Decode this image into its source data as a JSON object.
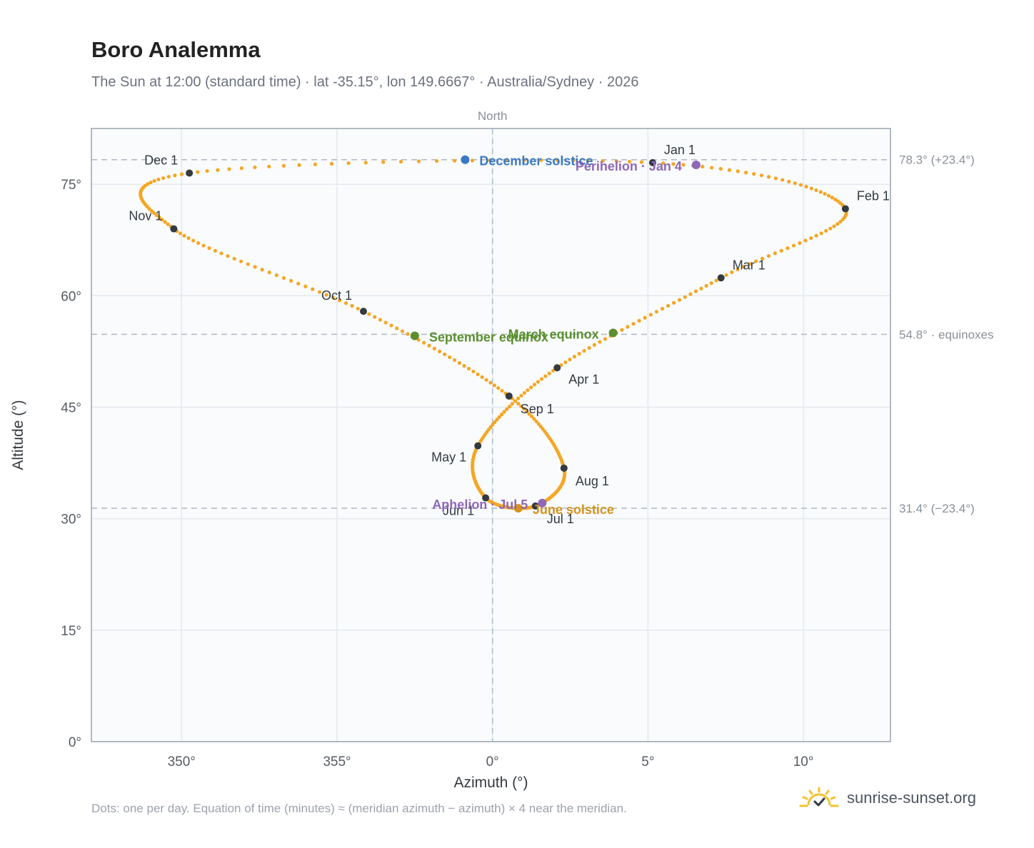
{
  "header": {
    "title": "Boro Analemma",
    "subtitle": "The Sun at 12:00 (standard time) · lat -35.15°, lon 149.6667° · Australia/Sydney · 2026"
  },
  "footer": {
    "note": "Dots: one per day. Equation of time (minutes) ≈ (meridian azimuth − azimuth) × 4 near the meridian.",
    "brand": "sunrise-sunset.org"
  },
  "colors": {
    "curve": "#f5a623",
    "month_marker": "#333a40",
    "equinox": "#5b8f2f",
    "december_solstice": "#3a78c2",
    "june_solstice": "#d4921e",
    "apsis": "#8e67b8",
    "plot_bg": "#f9fbfd",
    "grid": "#e3e9ef",
    "reference": "#b0b7c0"
  },
  "chart_data": {
    "type": "scatter",
    "xlabel": "Azimuth (°)",
    "ylabel": "Altitude (°)",
    "xlim": [
      347.1,
      372.8
    ],
    "ylim": [
      0,
      82.5
    ],
    "x_ticks": [
      {
        "value": 350,
        "label": "350°"
      },
      {
        "value": 355,
        "label": "355°"
      },
      {
        "value": 360,
        "label": "0°"
      },
      {
        "value": 365,
        "label": "5°"
      },
      {
        "value": 370,
        "label": "10°"
      }
    ],
    "y_ticks": [
      {
        "value": 0,
        "label": "0°"
      },
      {
        "value": 15,
        "label": "15°"
      },
      {
        "value": 30,
        "label": "30°"
      },
      {
        "value": 45,
        "label": "45°"
      },
      {
        "value": 60,
        "label": "60°"
      },
      {
        "value": 75,
        "label": "75°"
      }
    ],
    "meridian": {
      "x": 360,
      "label": "North"
    },
    "reference_lines": [
      {
        "y": 78.3,
        "label": "78.3° (+23.4°)"
      },
      {
        "y": 54.8,
        "label": "54.8° · equinoxes"
      },
      {
        "y": 31.4,
        "label": "31.4° (−23.4°)"
      }
    ],
    "grid": true,
    "month_markers": [
      {
        "label": "Jan 1",
        "x": 365.15,
        "y": 77.9
      },
      {
        "label": "Feb 1",
        "x": 371.35,
        "y": 71.7
      },
      {
        "label": "Mar 1",
        "x": 367.35,
        "y": 62.4
      },
      {
        "label": "Apr 1",
        "x": 362.08,
        "y": 50.3
      },
      {
        "label": "May 1",
        "x": 359.53,
        "y": 39.8
      },
      {
        "label": "Jun 1",
        "x": 359.78,
        "y": 32.8
      },
      {
        "label": "Jul 1",
        "x": 361.38,
        "y": 31.7
      },
      {
        "label": "Aug 1",
        "x": 362.3,
        "y": 36.8
      },
      {
        "label": "Sep 1",
        "x": 360.53,
        "y": 46.5
      },
      {
        "label": "Oct 1",
        "x": 355.85,
        "y": 57.9
      },
      {
        "label": "Nov 1",
        "x": 349.75,
        "y": 69.0
      },
      {
        "label": "Dec 1",
        "x": 350.25,
        "y": 76.5
      }
    ],
    "events": [
      {
        "label": "December solstice",
        "x": 359.12,
        "y": 78.3,
        "color": "#3a78c2"
      },
      {
        "label": "June solstice",
        "x": 360.83,
        "y": 31.4,
        "color": "#d4921e"
      },
      {
        "label": "March equinox",
        "x": 363.88,
        "y": 55.0,
        "color": "#5b8f2f"
      },
      {
        "label": "September equinox",
        "x": 357.5,
        "y": 54.6,
        "color": "#5b8f2f"
      },
      {
        "label": "Perihelion · Jan 4",
        "x": 366.55,
        "y": 77.6,
        "color": "#8e67b8"
      },
      {
        "label": "Aphelion · Jul 5",
        "x": 361.6,
        "y": 32.1,
        "color": "#8e67b8"
      }
    ],
    "monthly_points": [
      [
        365.15,
        77.9
      ],
      [
        371.35,
        71.7
      ],
      [
        367.35,
        62.4
      ],
      [
        362.08,
        50.3
      ],
      [
        359.53,
        39.8
      ],
      [
        359.78,
        32.8
      ],
      [
        361.38,
        31.7
      ],
      [
        362.3,
        36.8
      ],
      [
        360.53,
        46.5
      ],
      [
        355.85,
        57.9
      ],
      [
        349.75,
        69.0
      ],
      [
        350.25,
        76.5
      ]
    ]
  }
}
